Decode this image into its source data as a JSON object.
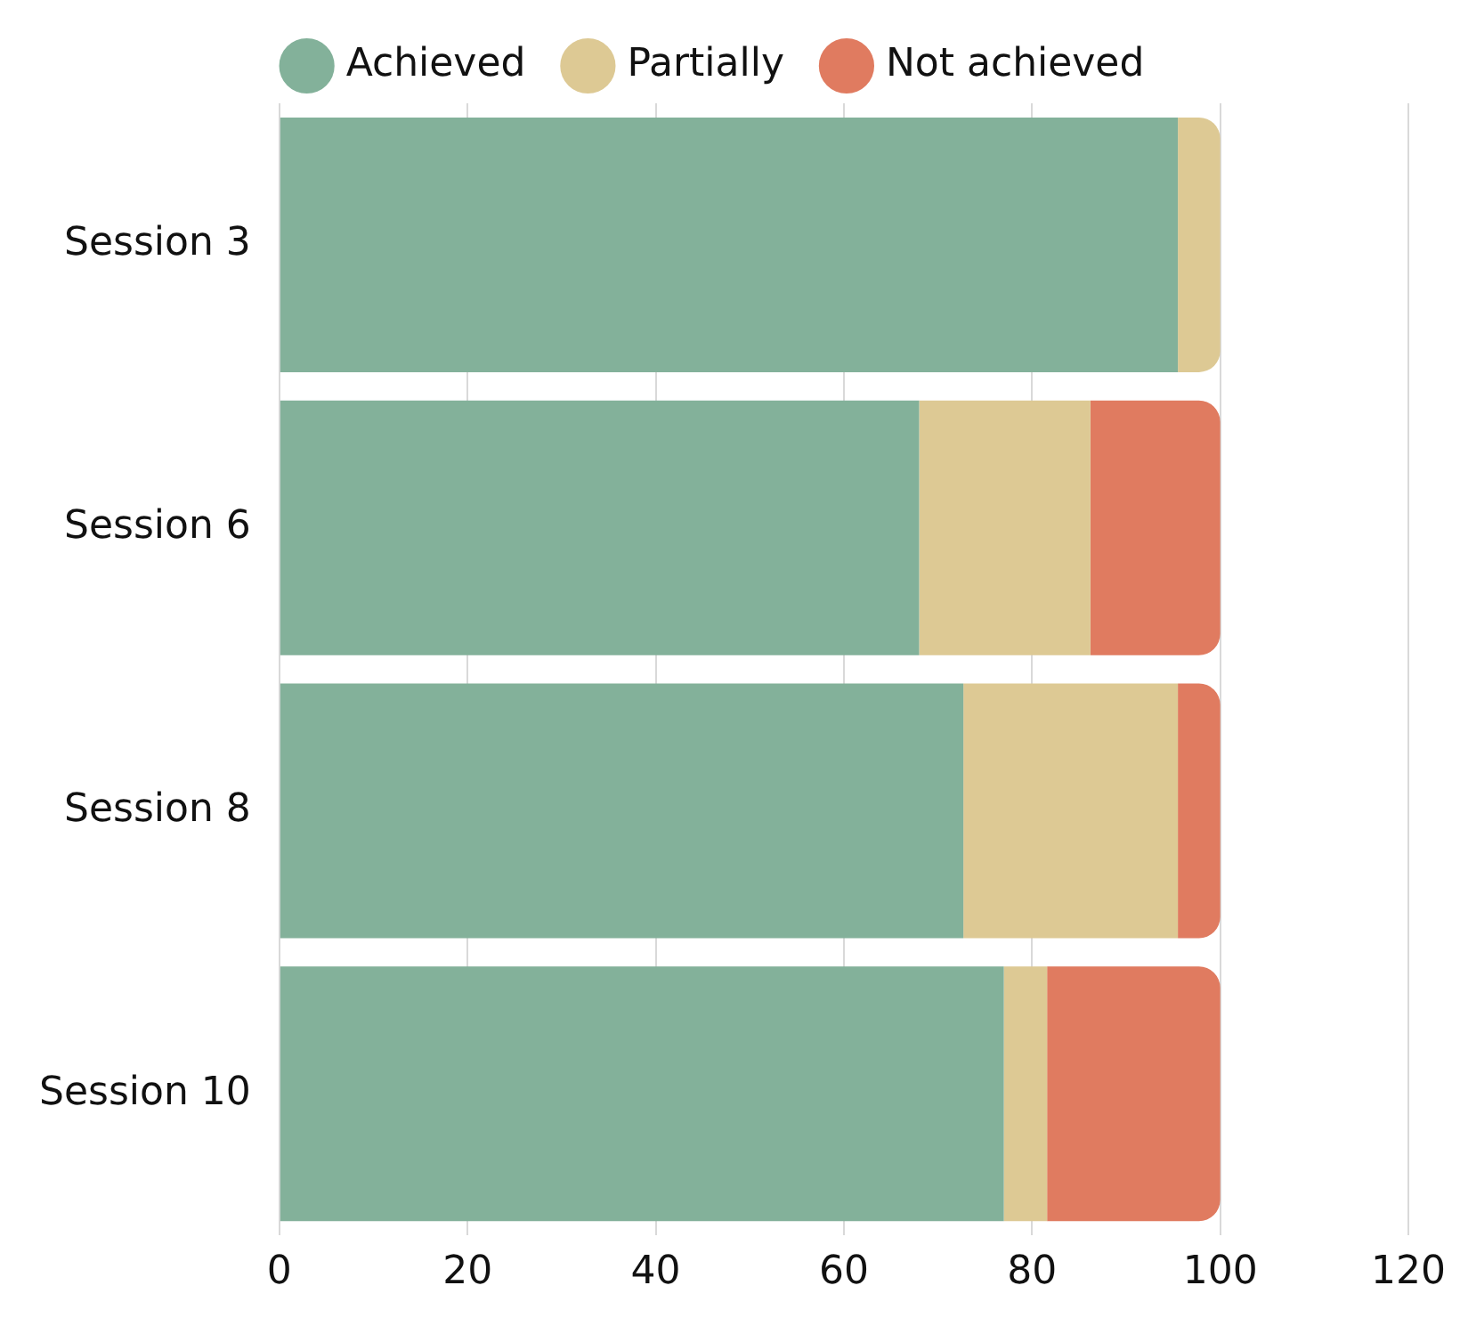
{
  "chart_data": {
    "type": "bar",
    "orientation": "horizontal",
    "stacked": true,
    "categories": [
      "Session 3",
      "Session 6",
      "Session 8",
      "Session 10"
    ],
    "series": [
      {
        "name": "Achieved",
        "color": "#83b19a",
        "values": [
          95.5,
          68,
          72.7,
          77
        ]
      },
      {
        "name": "Partially",
        "color": "#ddc994",
        "values": [
          4.5,
          18.2,
          22.8,
          4.6
        ]
      },
      {
        "name": "Not achieved",
        "color": "#e07b60",
        "values": [
          0,
          13.8,
          4.5,
          18.4
        ]
      }
    ],
    "xlim": [
      0,
      120
    ],
    "xticks": [
      0,
      20,
      40,
      60,
      80,
      100,
      120
    ],
    "grid": "x",
    "legend": "top"
  }
}
